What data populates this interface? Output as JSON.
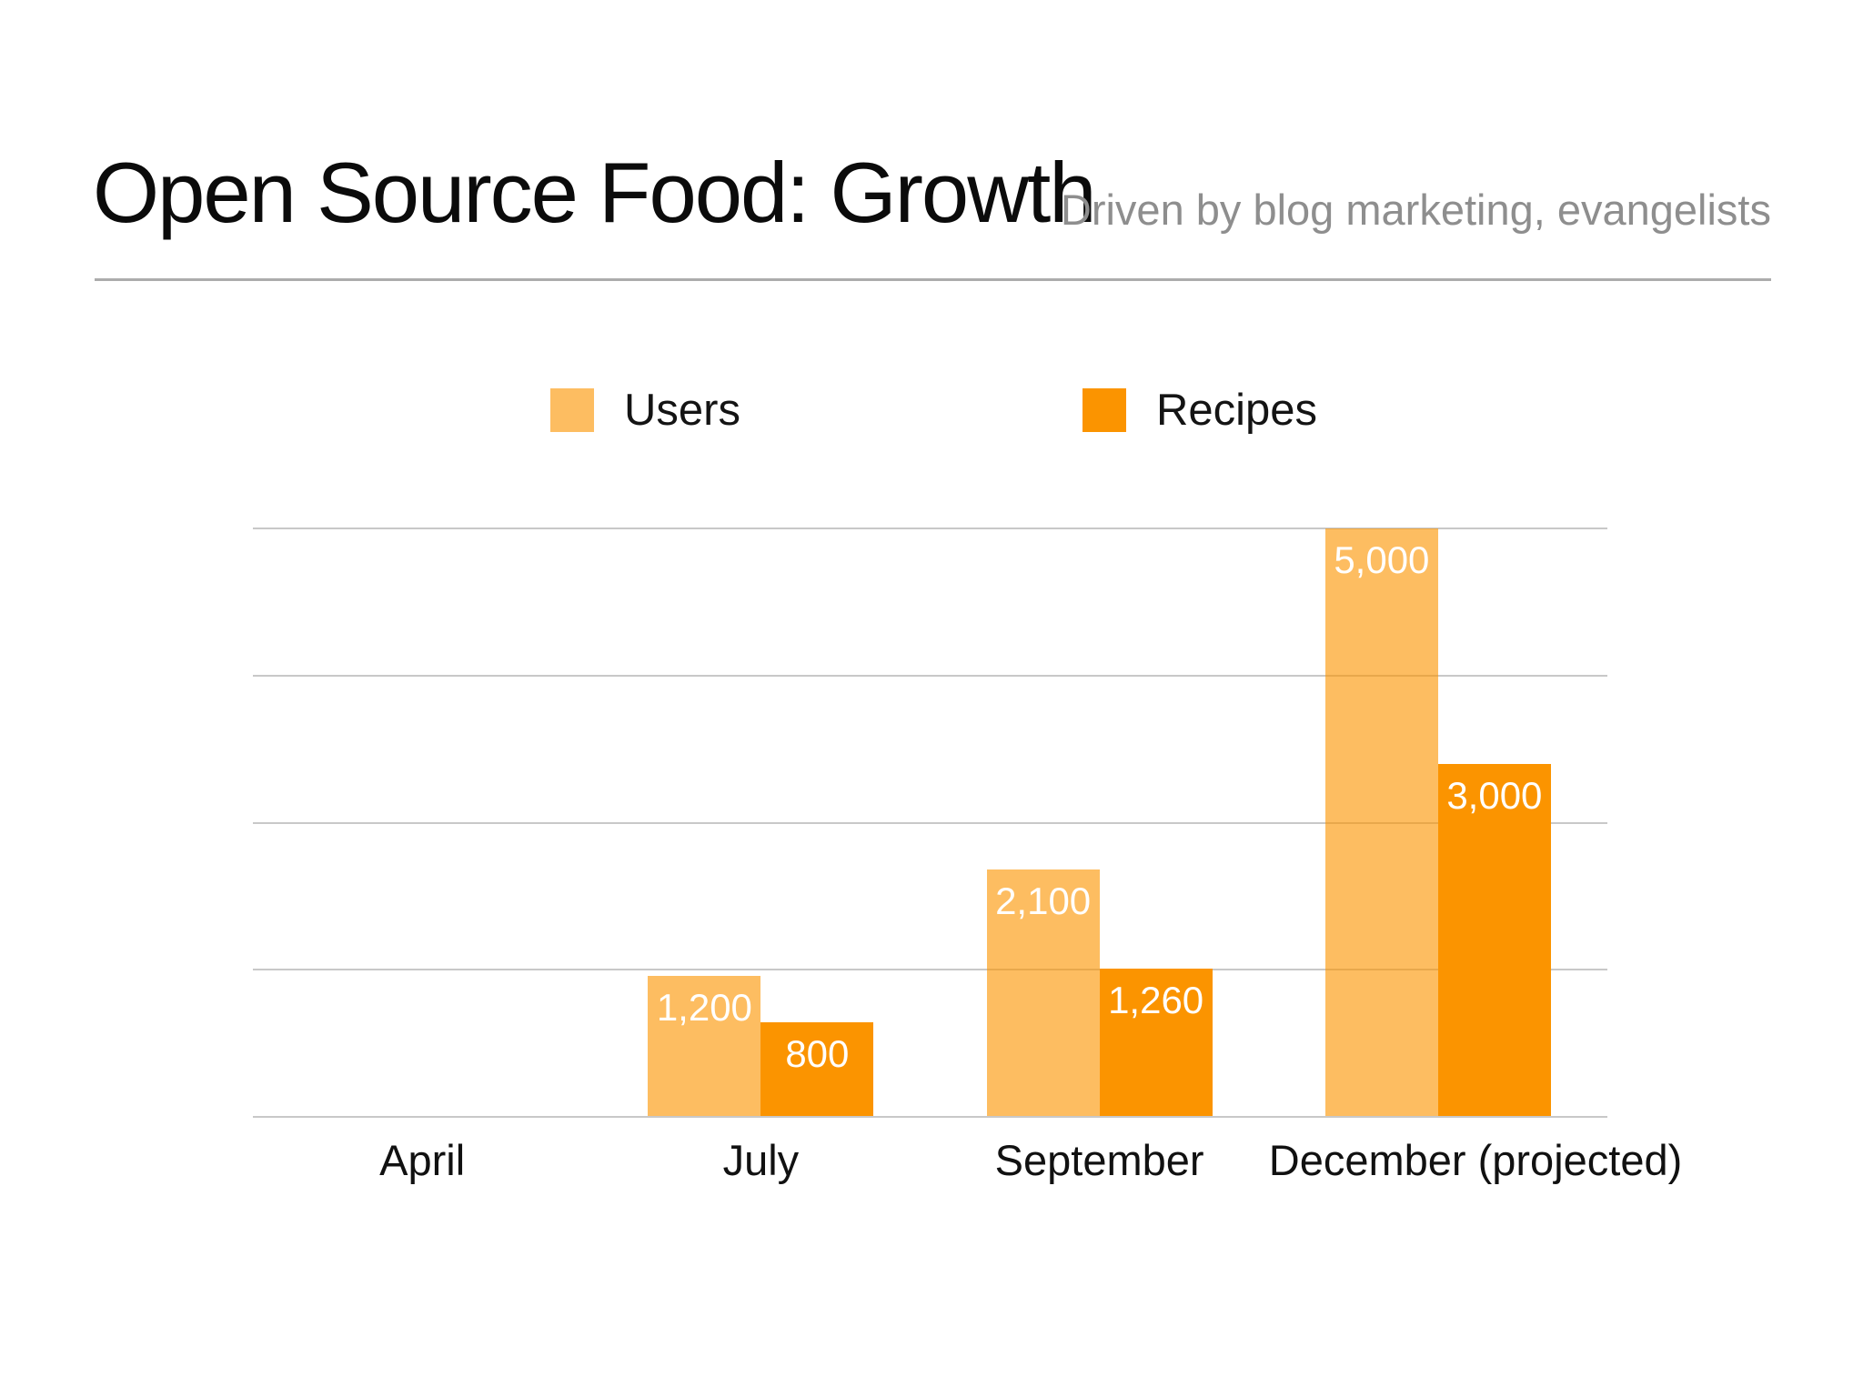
{
  "slide": {
    "title": "Open Source Food: Growth",
    "subtitle": "Driven by blog marketing, evangelists"
  },
  "chart_data": {
    "type": "bar",
    "title": "Open Source Food: Growth",
    "subtitle": "Driven by blog marketing, evangelists",
    "categories": [
      "April",
      "July",
      "September",
      "December (projected)"
    ],
    "series": [
      {
        "name": "Users",
        "values": [
          0,
          1200,
          2100,
          5000
        ],
        "labels": [
          "",
          "1,200",
          "2,100",
          "5,000"
        ],
        "color": "rgba(251,148,0,0.62)"
      },
      {
        "name": "Recipes",
        "values": [
          0,
          800,
          1260,
          3000
        ],
        "labels": [
          "",
          "800",
          "1,260",
          "3,000"
        ],
        "color": "#fb9400"
      }
    ],
    "ylim": [
      0,
      5000
    ],
    "gridline_step": 1250,
    "grid": true,
    "y_axis_tick_labels_visible": false,
    "legend_position": "top",
    "xlabel": "",
    "ylabel": ""
  },
  "colors": {
    "background": "#ffffff",
    "title_text": "#0b0b0b",
    "subtitle_text": "#8e8e8e",
    "divider": "#acacac",
    "gridline": "#c8c8c8",
    "category_label_text": "#111111",
    "value_label_text": "#ffffff",
    "users_fill": "rgba(251,148,0,0.62)",
    "recipes_fill": "#fb9400"
  }
}
